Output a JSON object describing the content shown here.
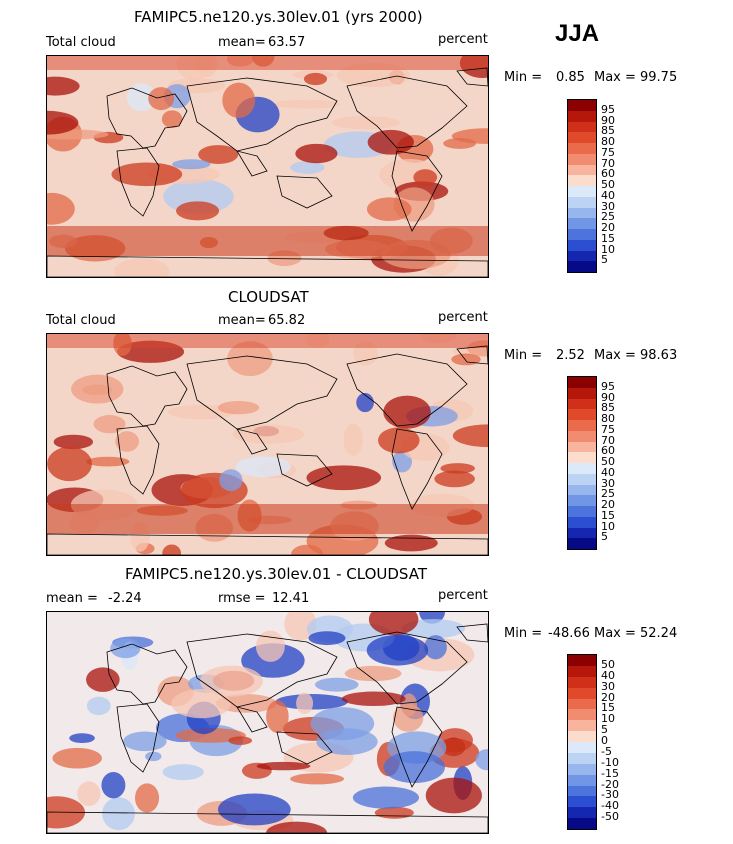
{
  "season": "JJA",
  "panels": [
    {
      "title": "FAMIPC5.ne120.ys.30lev.01 (yrs 2000)",
      "left_label": "Total cloud",
      "mean_label": "mean=",
      "mean_value": "63.57",
      "rmse_label": "",
      "rmse_value": "",
      "units": "percent",
      "min_label": "Min =",
      "min_value": "0.85",
      "max_label": "Max =",
      "max_value": "99.75",
      "colorbar_levels": [
        "95",
        "90",
        "85",
        "80",
        "75",
        "70",
        "60",
        "50",
        "40",
        "30",
        "25",
        "20",
        "15",
        "10",
        "5"
      ],
      "colorbar_colors": [
        "#8b0000",
        "#b5170b",
        "#d0301a",
        "#e04a2b",
        "#ea6a4c",
        "#f28c70",
        "#f8b49c",
        "#fbdccd",
        "#dce9f8",
        "#bcd3f3",
        "#98b6ee",
        "#7296e6",
        "#4d74dc",
        "#2b4fd0",
        "#1527b0",
        "#070a86"
      ]
    },
    {
      "title": "CLOUDSAT",
      "left_label": "Total cloud",
      "mean_label": "mean=",
      "mean_value": "65.82",
      "rmse_label": "",
      "rmse_value": "",
      "units": "percent",
      "min_label": "Min =",
      "min_value": "2.52",
      "max_label": "Max =",
      "max_value": "98.63",
      "colorbar_levels": [
        "95",
        "90",
        "85",
        "80",
        "75",
        "70",
        "60",
        "50",
        "40",
        "30",
        "25",
        "20",
        "15",
        "10",
        "5"
      ],
      "colorbar_colors": [
        "#8b0000",
        "#b5170b",
        "#d0301a",
        "#e04a2b",
        "#ea6a4c",
        "#f28c70",
        "#f8b49c",
        "#fbdccd",
        "#dce9f8",
        "#bcd3f3",
        "#98b6ee",
        "#7296e6",
        "#4d74dc",
        "#2b4fd0",
        "#1527b0",
        "#070a86"
      ]
    },
    {
      "title": "FAMIPC5.ne120.ys.30lev.01 - CLOUDSAT",
      "left_label": "mean =",
      "mean_label": "",
      "mean_value": "-2.24",
      "rmse_label": "rmse =",
      "rmse_value": "12.41",
      "units": "percent",
      "min_label": "Min =",
      "min_value": "-48.66",
      "max_label": "Max =",
      "max_value": "52.24",
      "colorbar_levels": [
        "50",
        "40",
        "30",
        "20",
        "15",
        "10",
        "5",
        "0",
        "-5",
        "-10",
        "-15",
        "-20",
        "-30",
        "-40",
        "-50"
      ],
      "colorbar_colors": [
        "#8b0000",
        "#b5170b",
        "#d0301a",
        "#e04a2b",
        "#ea6a4c",
        "#f28c70",
        "#f8b49c",
        "#fbdccd",
        "#dce9f8",
        "#bcd3f3",
        "#98b6ee",
        "#7296e6",
        "#4d74dc",
        "#2b4fd0",
        "#1527b0",
        "#070a86"
      ]
    }
  ],
  "chart_data": [
    {
      "type": "heatmap",
      "title": "FAMIPC5.ne120.ys.30lev.01 (yrs 2000)",
      "variable": "Total cloud",
      "units": "percent",
      "mean": 63.57,
      "min": 0.85,
      "max": 99.75,
      "levels": [
        5,
        10,
        15,
        20,
        25,
        30,
        40,
        50,
        60,
        70,
        75,
        80,
        85,
        90,
        95
      ]
    },
    {
      "type": "heatmap",
      "title": "CLOUDSAT",
      "variable": "Total cloud",
      "units": "percent",
      "mean": 65.82,
      "min": 2.52,
      "max": 98.63,
      "levels": [
        5,
        10,
        15,
        20,
        25,
        30,
        40,
        50,
        60,
        70,
        75,
        80,
        85,
        90,
        95
      ]
    },
    {
      "type": "heatmap",
      "title": "FAMIPC5.ne120.ys.30lev.01 - CLOUDSAT",
      "units": "percent",
      "mean": -2.24,
      "rmse": 12.41,
      "min": -48.66,
      "max": 52.24,
      "levels": [
        -50,
        -40,
        -30,
        -20,
        -15,
        -10,
        -5,
        0,
        5,
        10,
        15,
        20,
        30,
        40,
        50
      ]
    }
  ]
}
